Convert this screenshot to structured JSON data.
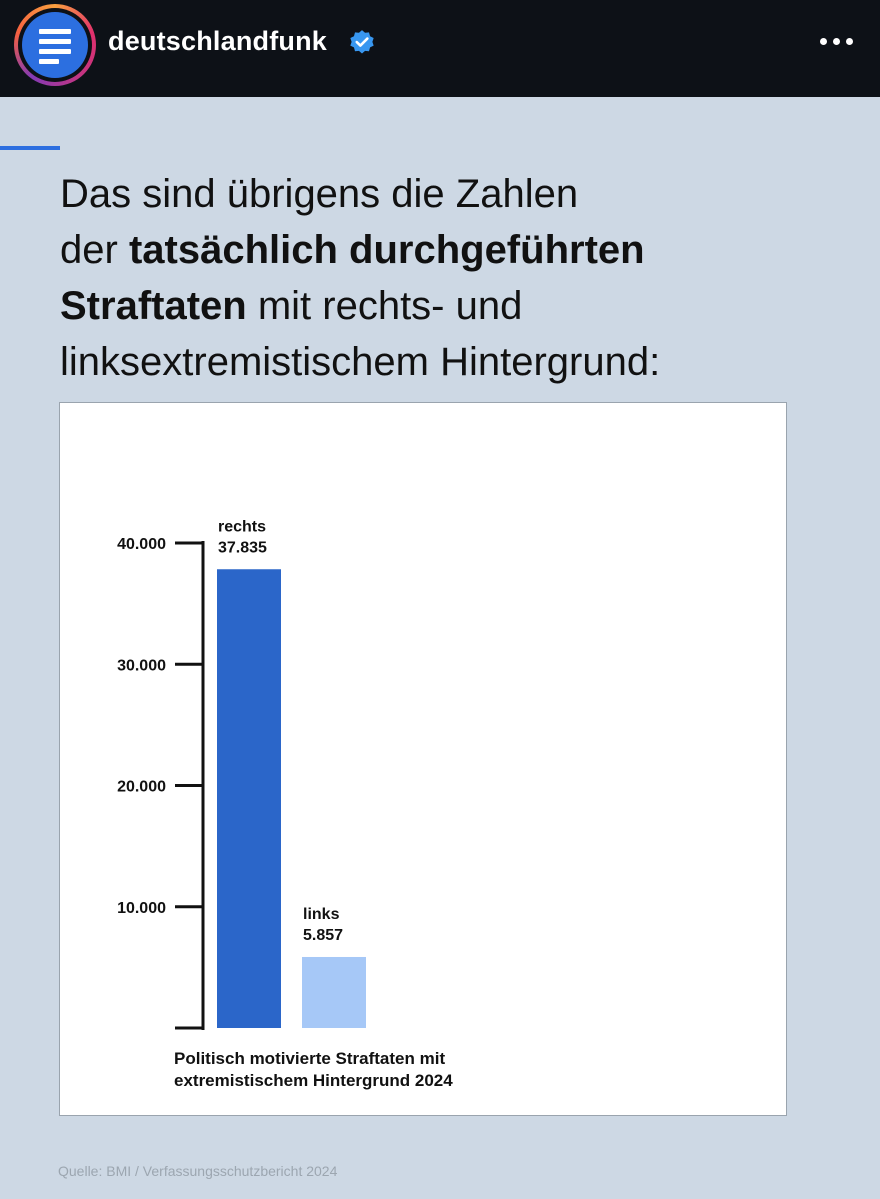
{
  "header": {
    "username": "deutschlandfunk",
    "verified_icon": "verified-badge-icon",
    "more_icon": "more-options-icon",
    "avatar_color": "#2c6fe0"
  },
  "post": {
    "headline": {
      "line1": "Das sind übrigens die Zahlen",
      "line2_pre": "der ",
      "line2_bold": "tatsächlich durchgeführten",
      "line3_bold": "Straftaten",
      "line3_post": " mit rechts- und",
      "line4": "linksextremistischem Hintergrund:"
    },
    "source": "Quelle: BMI / Verfassungsschutzbericht 2024"
  },
  "chart_data": {
    "type": "bar",
    "categories": [
      "rechts",
      "links"
    ],
    "values": [
      37835,
      5857
    ],
    "value_labels": [
      "37.835",
      "5.857"
    ],
    "colors": [
      "#2b66c9",
      "#a6c8f7"
    ],
    "y_ticks": [
      10000,
      20000,
      30000,
      40000
    ],
    "y_tick_labels": [
      "10.000",
      "20.000",
      "30.000",
      "40.000"
    ],
    "ylim": [
      0,
      40000
    ],
    "grid": false,
    "caption_line1": "Politisch motivierte Straftaten mit",
    "caption_line2": "extremistischem Hintergrund 2024"
  }
}
